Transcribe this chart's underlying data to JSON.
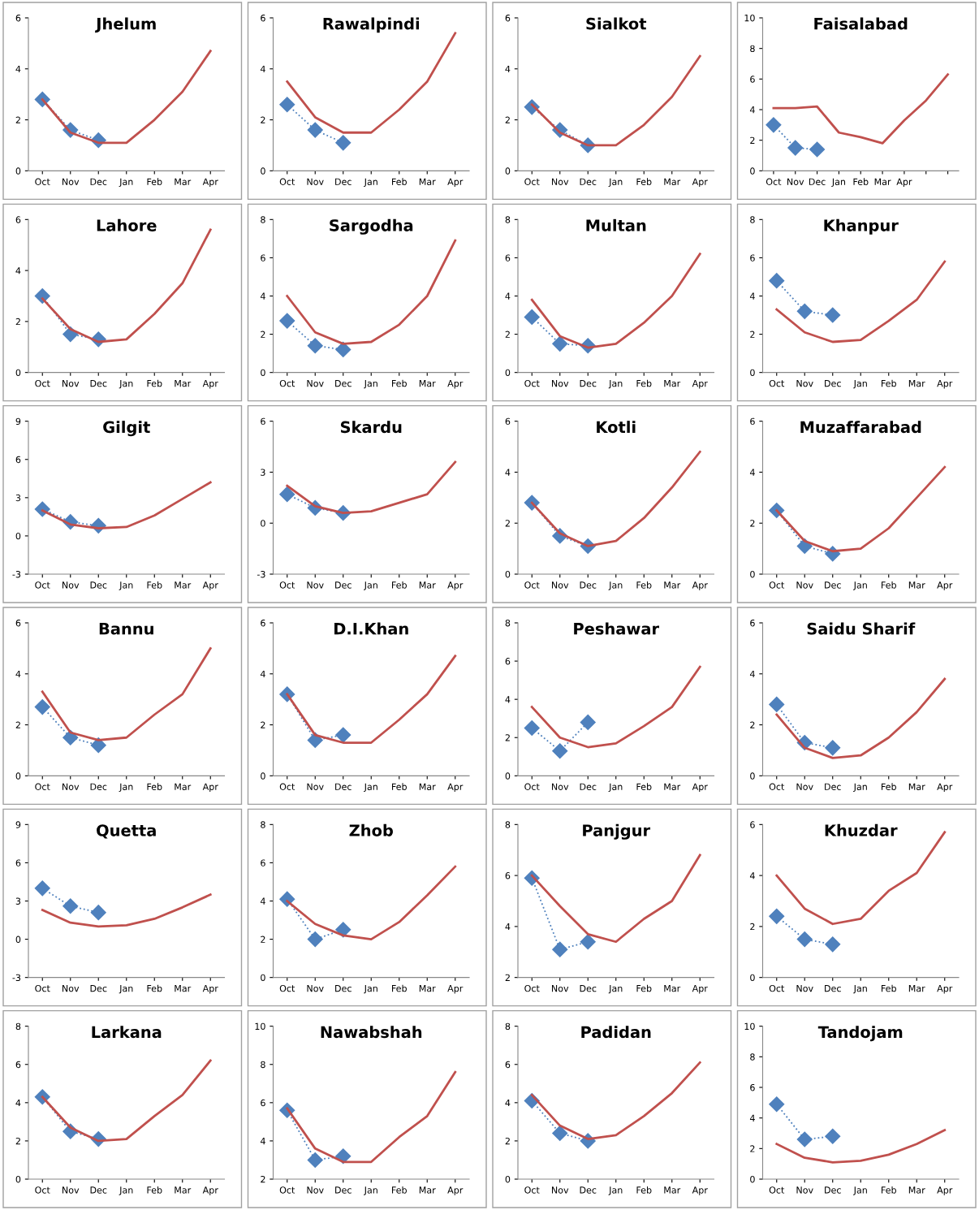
{
  "chart_data": [
    {
      "type": "line",
      "title": "Jhelum",
      "categories": [
        "Oct",
        "Nov",
        "Dec",
        "Jan",
        "Feb",
        "Mar",
        "Apr"
      ],
      "ylim": [
        0,
        6
      ],
      "yticks": [
        0,
        2,
        4,
        6
      ],
      "grid": false,
      "legend": false,
      "series": [
        {
          "type": "line",
          "color": "#c0504d",
          "marker": "none",
          "line_style": "solid",
          "values": [
            2.8,
            1.5,
            1.1,
            1.1,
            2.0,
            3.1,
            4.7
          ]
        },
        {
          "type": "line",
          "color": "#4f81bd",
          "marker": "diamond",
          "line_style": "dotted",
          "values": [
            2.8,
            1.6,
            1.2,
            null,
            null,
            null,
            null
          ]
        }
      ]
    },
    {
      "type": "line",
      "title": "Rawalpindi",
      "categories": [
        "Oct",
        "Nov",
        "Dec",
        "Jan",
        "Feb",
        "Mar",
        "Apr"
      ],
      "ylim": [
        0,
        6
      ],
      "yticks": [
        0,
        2,
        4,
        6
      ],
      "grid": false,
      "legend": false,
      "series": [
        {
          "type": "line",
          "color": "#c0504d",
          "marker": "none",
          "line_style": "solid",
          "values": [
            3.5,
            2.1,
            1.5,
            1.5,
            2.4,
            3.5,
            5.4
          ]
        },
        {
          "type": "line",
          "color": "#4f81bd",
          "marker": "diamond",
          "line_style": "dotted",
          "values": [
            2.6,
            1.6,
            1.1,
            null,
            null,
            null,
            null
          ]
        }
      ]
    },
    {
      "type": "line",
      "title": "Sialkot",
      "categories": [
        "Oct",
        "Nov",
        "Dec",
        "Jan",
        "Feb",
        "Mar",
        "Apr"
      ],
      "ylim": [
        0,
        6
      ],
      "yticks": [
        0,
        2,
        4,
        6
      ],
      "grid": false,
      "legend": false,
      "series": [
        {
          "type": "line",
          "color": "#c0504d",
          "marker": "none",
          "line_style": "solid",
          "values": [
            2.6,
            1.5,
            1.0,
            1.0,
            1.8,
            2.9,
            4.5
          ]
        },
        {
          "type": "line",
          "color": "#4f81bd",
          "marker": "diamond",
          "line_style": "dotted",
          "values": [
            2.5,
            1.6,
            1.0,
            null,
            null,
            null,
            null
          ]
        }
      ]
    },
    {
      "type": "line",
      "title": "Faisalabad",
      "categories": [
        "Oct",
        "Nov",
        "Dec",
        "Jan",
        "Feb",
        "Mar",
        "Apr",
        null,
        null
      ],
      "ylim": [
        0,
        10
      ],
      "yticks": [
        0,
        2,
        4,
        6,
        8,
        10
      ],
      "grid": false,
      "legend": false,
      "series": [
        {
          "type": "line",
          "color": "#c0504d",
          "marker": "none",
          "line_style": "solid",
          "values": [
            4.1,
            4.1,
            4.2,
            2.5,
            2.2,
            1.8,
            3.3,
            4.6,
            6.3
          ]
        },
        {
          "type": "line",
          "color": "#4f81bd",
          "marker": "diamond",
          "line_style": "dotted",
          "values": [
            3.0,
            1.5,
            1.4,
            null,
            null,
            null,
            null,
            null,
            null
          ]
        }
      ]
    },
    {
      "type": "line",
      "title": "Lahore",
      "categories": [
        "Oct",
        "Nov",
        "Dec",
        "Jan",
        "Feb",
        "Mar",
        "Apr"
      ],
      "ylim": [
        0,
        6
      ],
      "yticks": [
        0,
        2,
        4,
        6
      ],
      "grid": false,
      "legend": false,
      "series": [
        {
          "type": "line",
          "color": "#c0504d",
          "marker": "none",
          "line_style": "solid",
          "values": [
            2.9,
            1.7,
            1.2,
            1.3,
            2.3,
            3.5,
            5.6
          ]
        },
        {
          "type": "line",
          "color": "#4f81bd",
          "marker": "diamond",
          "line_style": "dotted",
          "values": [
            3.0,
            1.5,
            1.3,
            null,
            null,
            null,
            null
          ]
        }
      ]
    },
    {
      "type": "line",
      "title": "Sargodha",
      "categories": [
        "Oct",
        "Nov",
        "Dec",
        "Jan",
        "Feb",
        "Mar",
        "Apr"
      ],
      "ylim": [
        0,
        8
      ],
      "yticks": [
        0,
        2,
        4,
        6,
        8
      ],
      "grid": false,
      "legend": false,
      "series": [
        {
          "type": "line",
          "color": "#c0504d",
          "marker": "none",
          "line_style": "solid",
          "values": [
            4.0,
            2.1,
            1.5,
            1.6,
            2.5,
            4.0,
            6.9
          ]
        },
        {
          "type": "line",
          "color": "#4f81bd",
          "marker": "diamond",
          "line_style": "dotted",
          "values": [
            2.7,
            1.4,
            1.2,
            null,
            null,
            null,
            null
          ]
        }
      ]
    },
    {
      "type": "line",
      "title": "Multan",
      "categories": [
        "Oct",
        "Nov",
        "Dec",
        "Jan",
        "Feb",
        "Mar",
        "Apr"
      ],
      "ylim": [
        0,
        8
      ],
      "yticks": [
        0,
        2,
        4,
        6,
        8
      ],
      "grid": false,
      "legend": false,
      "series": [
        {
          "type": "line",
          "color": "#c0504d",
          "marker": "none",
          "line_style": "solid",
          "values": [
            3.8,
            1.9,
            1.3,
            1.5,
            2.6,
            4.0,
            6.2
          ]
        },
        {
          "type": "line",
          "color": "#4f81bd",
          "marker": "diamond",
          "line_style": "dotted",
          "values": [
            2.9,
            1.5,
            1.4,
            null,
            null,
            null,
            null
          ]
        }
      ]
    },
    {
      "type": "line",
      "title": "Khanpur",
      "categories": [
        "Oct",
        "Nov",
        "Dec",
        "Jan",
        "Feb",
        "Mar",
        "Apr"
      ],
      "ylim": [
        0,
        8
      ],
      "yticks": [
        0,
        2,
        4,
        6,
        8
      ],
      "grid": false,
      "legend": false,
      "series": [
        {
          "type": "line",
          "color": "#c0504d",
          "marker": "none",
          "line_style": "solid",
          "values": [
            3.3,
            2.1,
            1.6,
            1.7,
            2.7,
            3.8,
            5.8
          ]
        },
        {
          "type": "line",
          "color": "#4f81bd",
          "marker": "diamond",
          "line_style": "dotted",
          "values": [
            4.8,
            3.2,
            3.0,
            null,
            null,
            null,
            null
          ]
        }
      ]
    },
    {
      "type": "line",
      "title": "Gilgit",
      "categories": [
        "Oct",
        "Nov",
        "Dec",
        "Jan",
        "Feb",
        "Mar",
        "Apr"
      ],
      "ylim": [
        -3,
        9
      ],
      "yticks": [
        -3,
        0,
        3,
        6,
        9
      ],
      "grid": false,
      "legend": false,
      "series": [
        {
          "type": "line",
          "color": "#c0504d",
          "marker": "none",
          "line_style": "solid",
          "values": [
            2.0,
            0.9,
            0.6,
            0.7,
            1.6,
            2.9,
            4.2
          ]
        },
        {
          "type": "line",
          "color": "#4f81bd",
          "marker": "diamond",
          "line_style": "dotted",
          "values": [
            2.1,
            1.1,
            0.8,
            null,
            null,
            null,
            null
          ]
        }
      ]
    },
    {
      "type": "line",
      "title": "Skardu",
      "categories": [
        "Oct",
        "Nov",
        "Dec",
        "Jan",
        "Feb",
        "Mar",
        "Apr"
      ],
      "ylim": [
        -3,
        6
      ],
      "yticks": [
        -3,
        0,
        3,
        6
      ],
      "grid": false,
      "legend": false,
      "series": [
        {
          "type": "line",
          "color": "#c0504d",
          "marker": "none",
          "line_style": "solid",
          "values": [
            2.2,
            1.0,
            0.6,
            0.7,
            1.2,
            1.7,
            3.6
          ]
        },
        {
          "type": "line",
          "color": "#4f81bd",
          "marker": "diamond",
          "line_style": "dotted",
          "values": [
            1.7,
            0.9,
            0.6,
            null,
            null,
            null,
            null
          ]
        }
      ]
    },
    {
      "type": "line",
      "title": "Kotli",
      "categories": [
        "Oct",
        "Nov",
        "Dec",
        "Jan",
        "Feb",
        "Mar",
        "Apr"
      ],
      "ylim": [
        0,
        6
      ],
      "yticks": [
        0,
        2,
        4,
        6
      ],
      "grid": false,
      "legend": false,
      "series": [
        {
          "type": "line",
          "color": "#c0504d",
          "marker": "none",
          "line_style": "solid",
          "values": [
            2.8,
            1.6,
            1.1,
            1.3,
            2.2,
            3.4,
            4.8
          ]
        },
        {
          "type": "line",
          "color": "#4f81bd",
          "marker": "diamond",
          "line_style": "dotted",
          "values": [
            2.8,
            1.5,
            1.1,
            null,
            null,
            null,
            null
          ]
        }
      ]
    },
    {
      "type": "line",
      "title": "Muzaffarabad",
      "categories": [
        "Oct",
        "Nov",
        "Dec",
        "Jan",
        "Feb",
        "Mar",
        "Apr"
      ],
      "ylim": [
        0,
        6
      ],
      "yticks": [
        0,
        2,
        4,
        6
      ],
      "grid": false,
      "legend": false,
      "series": [
        {
          "type": "line",
          "color": "#c0504d",
          "marker": "none",
          "line_style": "solid",
          "values": [
            2.5,
            1.3,
            0.9,
            1.0,
            1.8,
            3.0,
            4.2
          ]
        },
        {
          "type": "line",
          "color": "#4f81bd",
          "marker": "diamond",
          "line_style": "dotted",
          "values": [
            2.5,
            1.1,
            0.8,
            null,
            null,
            null,
            null
          ]
        }
      ]
    },
    {
      "type": "line",
      "title": "Bannu",
      "categories": [
        "Oct",
        "Nov",
        "Dec",
        "Jan",
        "Feb",
        "Mar",
        "Apr"
      ],
      "ylim": [
        0,
        6
      ],
      "yticks": [
        0,
        2,
        4,
        6
      ],
      "grid": false,
      "legend": false,
      "series": [
        {
          "type": "line",
          "color": "#c0504d",
          "marker": "none",
          "line_style": "solid",
          "values": [
            3.3,
            1.7,
            1.4,
            1.5,
            2.4,
            3.2,
            5.0
          ]
        },
        {
          "type": "line",
          "color": "#4f81bd",
          "marker": "diamond",
          "line_style": "dotted",
          "values": [
            2.7,
            1.5,
            1.2,
            null,
            null,
            null,
            null
          ]
        }
      ]
    },
    {
      "type": "line",
      "title": "D.I.Khan",
      "categories": [
        "Oct",
        "Nov",
        "Dec",
        "Jan",
        "Feb",
        "Mar",
        "Apr"
      ],
      "ylim": [
        0,
        6
      ],
      "yticks": [
        0,
        2,
        4,
        6
      ],
      "grid": false,
      "legend": false,
      "series": [
        {
          "type": "line",
          "color": "#c0504d",
          "marker": "none",
          "line_style": "solid",
          "values": [
            3.2,
            1.6,
            1.3,
            1.3,
            2.2,
            3.2,
            4.7
          ]
        },
        {
          "type": "line",
          "color": "#4f81bd",
          "marker": "diamond",
          "line_style": "dotted",
          "values": [
            3.2,
            1.4,
            1.6,
            null,
            null,
            null,
            null
          ]
        }
      ]
    },
    {
      "type": "line",
      "title": "Peshawar",
      "categories": [
        "Oct",
        "Nov",
        "Dec",
        "Jan",
        "Feb",
        "Mar",
        "Apr"
      ],
      "ylim": [
        0,
        8
      ],
      "yticks": [
        0,
        2,
        4,
        6,
        8
      ],
      "grid": false,
      "legend": false,
      "series": [
        {
          "type": "line",
          "color": "#c0504d",
          "marker": "none",
          "line_style": "solid",
          "values": [
            3.6,
            2.0,
            1.5,
            1.7,
            2.6,
            3.6,
            5.7
          ]
        },
        {
          "type": "line",
          "color": "#4f81bd",
          "marker": "diamond",
          "line_style": "dotted",
          "values": [
            2.5,
            1.3,
            2.8,
            null,
            null,
            null,
            null
          ]
        }
      ]
    },
    {
      "type": "line",
      "title": "Saidu Sharif",
      "categories": [
        "Oct",
        "Nov",
        "Dec",
        "Jan",
        "Feb",
        "Mar",
        "Apr"
      ],
      "ylim": [
        0,
        6
      ],
      "yticks": [
        0,
        2,
        4,
        6
      ],
      "grid": false,
      "legend": false,
      "series": [
        {
          "type": "line",
          "color": "#c0504d",
          "marker": "none",
          "line_style": "solid",
          "values": [
            2.4,
            1.1,
            0.7,
            0.8,
            1.5,
            2.5,
            3.8
          ]
        },
        {
          "type": "line",
          "color": "#4f81bd",
          "marker": "diamond",
          "line_style": "dotted",
          "values": [
            2.8,
            1.3,
            1.1,
            null,
            null,
            null,
            null
          ]
        }
      ]
    },
    {
      "type": "line",
      "title": "Quetta",
      "categories": [
        "Oct",
        "Nov",
        "Dec",
        "Jan",
        "Feb",
        "Mar",
        "Apr"
      ],
      "ylim": [
        -3,
        9
      ],
      "yticks": [
        -3,
        0,
        3,
        6,
        9
      ],
      "grid": false,
      "legend": false,
      "series": [
        {
          "type": "line",
          "color": "#c0504d",
          "marker": "none",
          "line_style": "solid",
          "values": [
            2.3,
            1.3,
            1.0,
            1.1,
            1.6,
            2.5,
            3.5
          ]
        },
        {
          "type": "line",
          "color": "#4f81bd",
          "marker": "diamond",
          "line_style": "dotted",
          "values": [
            4.0,
            2.6,
            2.1,
            null,
            null,
            null,
            null
          ]
        }
      ]
    },
    {
      "type": "line",
      "title": "Zhob",
      "categories": [
        "Oct",
        "Nov",
        "Dec",
        "Jan",
        "Feb",
        "Mar",
        "Apr"
      ],
      "ylim": [
        0,
        8
      ],
      "yticks": [
        0,
        2,
        4,
        6,
        8
      ],
      "grid": false,
      "legend": false,
      "series": [
        {
          "type": "line",
          "color": "#c0504d",
          "marker": "none",
          "line_style": "solid",
          "values": [
            4.0,
            2.8,
            2.2,
            2.0,
            2.9,
            4.3,
            5.8
          ]
        },
        {
          "type": "line",
          "color": "#4f81bd",
          "marker": "diamond",
          "line_style": "dotted",
          "values": [
            4.1,
            2.0,
            2.5,
            null,
            null,
            null,
            null
          ]
        }
      ]
    },
    {
      "type": "line",
      "title": "Panjgur",
      "categories": [
        "Oct",
        "Nov",
        "Dec",
        "Jan",
        "Feb",
        "Mar",
        "Apr"
      ],
      "ylim": [
        2,
        8
      ],
      "yticks": [
        2,
        4,
        6,
        8
      ],
      "grid": false,
      "legend": false,
      "series": [
        {
          "type": "line",
          "color": "#c0504d",
          "marker": "none",
          "line_style": "solid",
          "values": [
            6.0,
            4.8,
            3.7,
            3.4,
            4.3,
            5.0,
            6.8
          ]
        },
        {
          "type": "line",
          "color": "#4f81bd",
          "marker": "diamond",
          "line_style": "dotted",
          "values": [
            5.9,
            3.1,
            3.4,
            null,
            null,
            null,
            null
          ]
        }
      ]
    },
    {
      "type": "line",
      "title": "Khuzdar",
      "categories": [
        "Oct",
        "Nov",
        "Dec",
        "Jan",
        "Feb",
        "Mar",
        "Apr"
      ],
      "ylim": [
        0,
        6
      ],
      "yticks": [
        0,
        2,
        4,
        6
      ],
      "grid": false,
      "legend": false,
      "series": [
        {
          "type": "line",
          "color": "#c0504d",
          "marker": "none",
          "line_style": "solid",
          "values": [
            4.0,
            2.7,
            2.1,
            2.3,
            3.4,
            4.1,
            5.7
          ]
        },
        {
          "type": "line",
          "color": "#4f81bd",
          "marker": "diamond",
          "line_style": "dotted",
          "values": [
            2.4,
            1.5,
            1.3,
            null,
            null,
            null,
            null
          ]
        }
      ]
    },
    {
      "type": "line",
      "title": "Larkana",
      "categories": [
        "Oct",
        "Nov",
        "Dec",
        "Jan",
        "Feb",
        "Mar",
        "Apr"
      ],
      "ylim": [
        0,
        8
      ],
      "yticks": [
        0,
        2,
        4,
        6,
        8
      ],
      "grid": false,
      "legend": false,
      "series": [
        {
          "type": "line",
          "color": "#c0504d",
          "marker": "none",
          "line_style": "solid",
          "values": [
            4.3,
            2.7,
            2.0,
            2.1,
            3.3,
            4.4,
            6.2
          ]
        },
        {
          "type": "line",
          "color": "#4f81bd",
          "marker": "diamond",
          "line_style": "dotted",
          "values": [
            4.3,
            2.5,
            2.1,
            null,
            null,
            null,
            null
          ]
        }
      ]
    },
    {
      "type": "line",
      "title": "Nawabshah",
      "categories": [
        "Oct",
        "Nov",
        "Dec",
        "Jan",
        "Feb",
        "Mar",
        "Apr"
      ],
      "ylim": [
        2,
        10
      ],
      "yticks": [
        2,
        4,
        6,
        8,
        10
      ],
      "grid": false,
      "legend": false,
      "series": [
        {
          "type": "line",
          "color": "#c0504d",
          "marker": "none",
          "line_style": "solid",
          "values": [
            5.7,
            3.6,
            2.9,
            2.9,
            4.2,
            5.3,
            7.6
          ]
        },
        {
          "type": "line",
          "color": "#4f81bd",
          "marker": "diamond",
          "line_style": "dotted",
          "values": [
            5.6,
            3.0,
            3.2,
            null,
            null,
            null,
            null
          ]
        }
      ]
    },
    {
      "type": "line",
      "title": "Padidan",
      "categories": [
        "Oct",
        "Nov",
        "Dec",
        "Jan",
        "Feb",
        "Mar",
        "Apr"
      ],
      "ylim": [
        0,
        8
      ],
      "yticks": [
        0,
        2,
        4,
        6,
        8
      ],
      "grid": false,
      "legend": false,
      "series": [
        {
          "type": "line",
          "color": "#c0504d",
          "marker": "none",
          "line_style": "solid",
          "values": [
            4.4,
            2.8,
            2.1,
            2.3,
            3.3,
            4.5,
            6.1
          ]
        },
        {
          "type": "line",
          "color": "#4f81bd",
          "marker": "diamond",
          "line_style": "dotted",
          "values": [
            4.1,
            2.4,
            2.0,
            null,
            null,
            null,
            null
          ]
        }
      ]
    },
    {
      "type": "line",
      "title": "Tandojam",
      "categories": [
        "Oct",
        "Nov",
        "Dec",
        "Jan",
        "Feb",
        "Mar",
        "Apr"
      ],
      "ylim": [
        0,
        10
      ],
      "yticks": [
        0,
        2,
        4,
        6,
        8,
        10
      ],
      "grid": false,
      "legend": false,
      "series": [
        {
          "type": "line",
          "color": "#c0504d",
          "marker": "none",
          "line_style": "solid",
          "values": [
            2.3,
            1.4,
            1.1,
            1.2,
            1.6,
            2.3,
            3.2
          ]
        },
        {
          "type": "line",
          "color": "#4f81bd",
          "marker": "diamond",
          "line_style": "dotted",
          "values": [
            4.9,
            2.6,
            2.8,
            null,
            null,
            null,
            null
          ]
        }
      ]
    }
  ]
}
